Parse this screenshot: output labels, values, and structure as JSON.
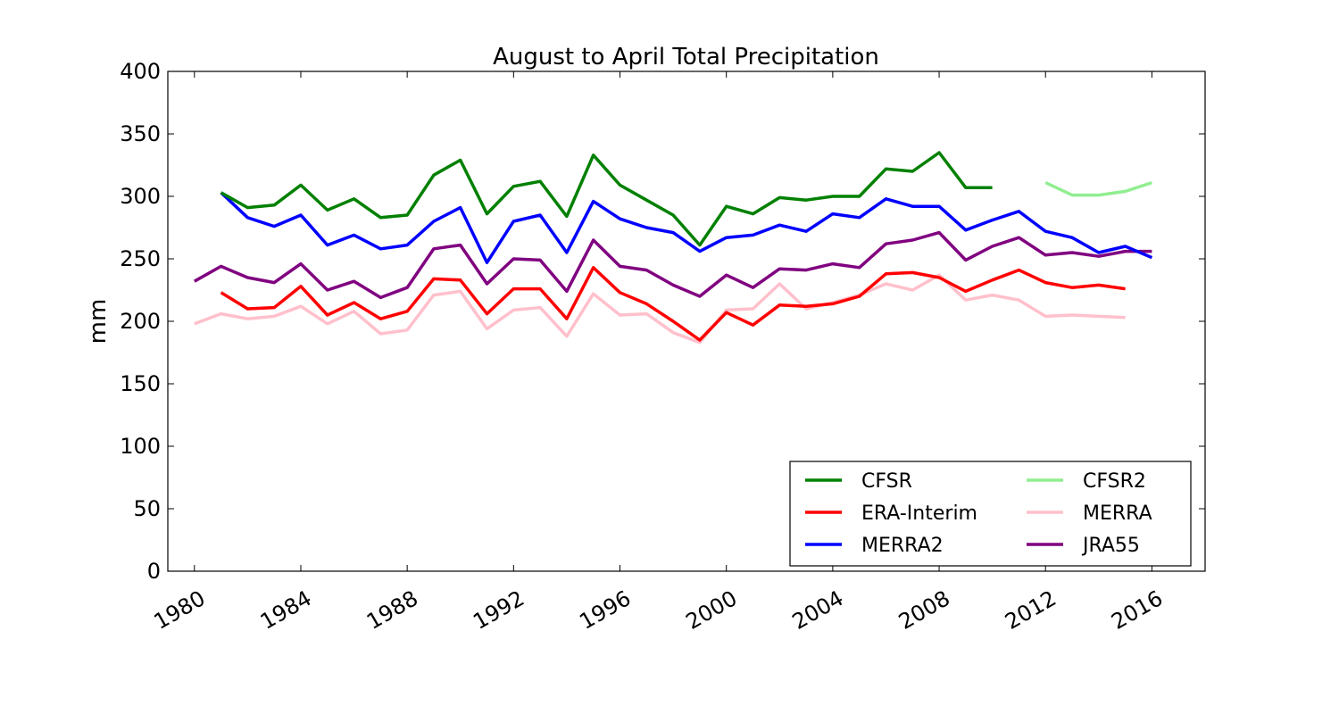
{
  "chart_data": {
    "type": "line",
    "title": "August to April Total Precipitation",
    "xlabel": "",
    "ylabel": "mm",
    "xlim": [
      1979,
      2018
    ],
    "ylim": [
      0,
      400
    ],
    "x_ticks": [
      "1980",
      "1984",
      "1988",
      "1992",
      "1996",
      "2000",
      "2004",
      "2008",
      "2012",
      "2016"
    ],
    "y_ticks": [
      "0",
      "50",
      "100",
      "150",
      "200",
      "250",
      "300",
      "350",
      "400"
    ],
    "grid": false,
    "legend_position": "bottom-right",
    "series": [
      {
        "name": "CFSR",
        "color": "#008000",
        "points": [
          [
            1981,
            303
          ],
          [
            1982,
            291
          ],
          [
            1983,
            293
          ],
          [
            1984,
            309
          ],
          [
            1985,
            289
          ],
          [
            1986,
            298
          ],
          [
            1987,
            283
          ],
          [
            1988,
            285
          ],
          [
            1989,
            317
          ],
          [
            1990,
            329
          ],
          [
            1991,
            286
          ],
          [
            1992,
            308
          ],
          [
            1993,
            312
          ],
          [
            1994,
            284
          ],
          [
            1995,
            333
          ],
          [
            1996,
            309
          ],
          [
            1997,
            297
          ],
          [
            1998,
            285
          ],
          [
            1999,
            261
          ],
          [
            2000,
            292
          ],
          [
            2001,
            286
          ],
          [
            2002,
            299
          ],
          [
            2003,
            297
          ],
          [
            2004,
            300
          ],
          [
            2005,
            300
          ],
          [
            2006,
            322
          ],
          [
            2007,
            320
          ],
          [
            2008,
            335
          ],
          [
            2009,
            307
          ],
          [
            2010,
            307
          ]
        ]
      },
      {
        "name": "ERA-Interim",
        "color": "#ff0000",
        "points": [
          [
            1981,
            223
          ],
          [
            1982,
            210
          ],
          [
            1983,
            211
          ],
          [
            1984,
            228
          ],
          [
            1985,
            205
          ],
          [
            1986,
            215
          ],
          [
            1987,
            202
          ],
          [
            1988,
            208
          ],
          [
            1989,
            234
          ],
          [
            1990,
            233
          ],
          [
            1991,
            206
          ],
          [
            1992,
            226
          ],
          [
            1993,
            226
          ],
          [
            1994,
            202
          ],
          [
            1995,
            243
          ],
          [
            1996,
            223
          ],
          [
            1997,
            214
          ],
          [
            1998,
            200
          ],
          [
            1999,
            185
          ],
          [
            2000,
            207
          ],
          [
            2001,
            197
          ],
          [
            2002,
            213
          ],
          [
            2003,
            212
          ],
          [
            2004,
            214
          ],
          [
            2005,
            220
          ],
          [
            2006,
            238
          ],
          [
            2007,
            239
          ],
          [
            2008,
            235
          ],
          [
            2009,
            224
          ],
          [
            2010,
            233
          ],
          [
            2011,
            241
          ],
          [
            2012,
            231
          ],
          [
            2013,
            227
          ],
          [
            2014,
            229
          ],
          [
            2015,
            226
          ]
        ]
      },
      {
        "name": "MERRA2",
        "color": "#0000ff",
        "points": [
          [
            1981,
            303
          ],
          [
            1982,
            283
          ],
          [
            1983,
            276
          ],
          [
            1984,
            285
          ],
          [
            1985,
            261
          ],
          [
            1986,
            269
          ],
          [
            1987,
            258
          ],
          [
            1988,
            261
          ],
          [
            1989,
            280
          ],
          [
            1990,
            291
          ],
          [
            1991,
            247
          ],
          [
            1992,
            280
          ],
          [
            1993,
            285
          ],
          [
            1994,
            255
          ],
          [
            1995,
            296
          ],
          [
            1996,
            282
          ],
          [
            1997,
            275
          ],
          [
            1998,
            271
          ],
          [
            1999,
            256
          ],
          [
            2000,
            267
          ],
          [
            2001,
            269
          ],
          [
            2002,
            277
          ],
          [
            2003,
            272
          ],
          [
            2004,
            286
          ],
          [
            2005,
            283
          ],
          [
            2006,
            298
          ],
          [
            2007,
            292
          ],
          [
            2008,
            292
          ],
          [
            2009,
            273
          ],
          [
            2010,
            281
          ],
          [
            2011,
            288
          ],
          [
            2012,
            272
          ],
          [
            2013,
            267
          ],
          [
            2014,
            255
          ],
          [
            2015,
            260
          ],
          [
            2016,
            251
          ]
        ]
      },
      {
        "name": "CFSR2",
        "color": "#90ee90",
        "points": [
          [
            2012,
            311
          ],
          [
            2013,
            301
          ],
          [
            2014,
            301
          ],
          [
            2015,
            304
          ],
          [
            2016,
            311
          ]
        ]
      },
      {
        "name": "MERRA",
        "color": "#ffc0cb",
        "points": [
          [
            1980,
            198
          ],
          [
            1981,
            206
          ],
          [
            1982,
            202
          ],
          [
            1983,
            204
          ],
          [
            1984,
            212
          ],
          [
            1985,
            198
          ],
          [
            1986,
            208
          ],
          [
            1987,
            190
          ],
          [
            1988,
            193
          ],
          [
            1989,
            221
          ],
          [
            1990,
            224
          ],
          [
            1991,
            194
          ],
          [
            1992,
            209
          ],
          [
            1993,
            211
          ],
          [
            1994,
            188
          ],
          [
            1995,
            222
          ],
          [
            1996,
            205
          ],
          [
            1997,
            206
          ],
          [
            1998,
            191
          ],
          [
            1999,
            183
          ],
          [
            2000,
            209
          ],
          [
            2001,
            210
          ],
          [
            2002,
            230
          ],
          [
            2003,
            210
          ],
          [
            2004,
            215
          ],
          [
            2005,
            221
          ],
          [
            2006,
            230
          ],
          [
            2007,
            225
          ],
          [
            2008,
            237
          ],
          [
            2009,
            217
          ],
          [
            2010,
            221
          ],
          [
            2011,
            217
          ],
          [
            2012,
            204
          ],
          [
            2013,
            205
          ],
          [
            2014,
            204
          ],
          [
            2015,
            203
          ]
        ]
      },
      {
        "name": "JRA55",
        "color": "#800080",
        "points": [
          [
            1980,
            232
          ],
          [
            1981,
            244
          ],
          [
            1982,
            235
          ],
          [
            1983,
            231
          ],
          [
            1984,
            246
          ],
          [
            1985,
            225
          ],
          [
            1986,
            232
          ],
          [
            1987,
            219
          ],
          [
            1988,
            227
          ],
          [
            1989,
            258
          ],
          [
            1990,
            261
          ],
          [
            1991,
            230
          ],
          [
            1992,
            250
          ],
          [
            1993,
            249
          ],
          [
            1994,
            224
          ],
          [
            1995,
            265
          ],
          [
            1996,
            244
          ],
          [
            1997,
            241
          ],
          [
            1998,
            229
          ],
          [
            1999,
            220
          ],
          [
            2000,
            237
          ],
          [
            2001,
            227
          ],
          [
            2002,
            242
          ],
          [
            2003,
            241
          ],
          [
            2004,
            246
          ],
          [
            2005,
            243
          ],
          [
            2006,
            262
          ],
          [
            2007,
            265
          ],
          [
            2008,
            271
          ],
          [
            2009,
            249
          ],
          [
            2010,
            260
          ],
          [
            2011,
            267
          ],
          [
            2012,
            253
          ],
          [
            2013,
            255
          ],
          [
            2014,
            252
          ],
          [
            2015,
            256
          ],
          [
            2016,
            256
          ]
        ]
      }
    ],
    "legend": [
      [
        "CFSR",
        "CFSR2"
      ],
      [
        "ERA-Interim",
        "MERRA"
      ],
      [
        "MERRA2",
        "JRA55"
      ]
    ]
  }
}
